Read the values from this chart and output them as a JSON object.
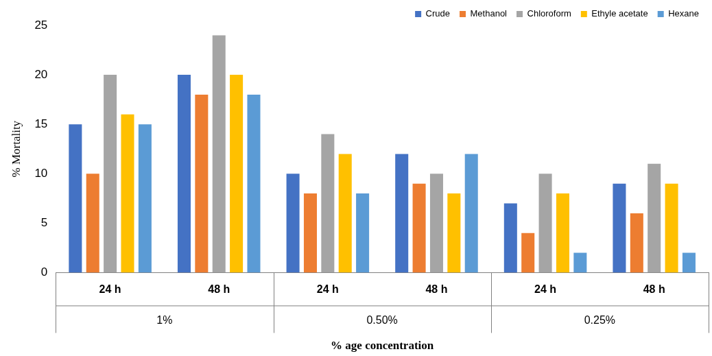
{
  "chart_data": {
    "type": "bar",
    "xlabel": "% age concentration",
    "ylabel": "% Mortality",
    "categories": [
      "24 h",
      "48 h",
      "24 h",
      "48 h",
      "24 h",
      "48 h"
    ],
    "annotations": [
      "1%",
      "0.50%",
      "0.25%"
    ],
    "series": [
      {
        "name": "Crude",
        "color": "#4472c4",
        "values": [
          15,
          20,
          10,
          12,
          7,
          9
        ]
      },
      {
        "name": "Methanol",
        "color": "#ed7d31",
        "values": [
          10,
          18,
          8,
          9,
          4,
          6
        ]
      },
      {
        "name": "Chloroform",
        "color": "#a5a5a5",
        "values": [
          20,
          24,
          14,
          10,
          10,
          11
        ]
      },
      {
        "name": "Ethyle acetate",
        "color": "#ffc000",
        "values": [
          16,
          20,
          12,
          8,
          8,
          9
        ]
      },
      {
        "name": "Hexane",
        "color": "#5b9bd5",
        "values": [
          15,
          18,
          8,
          12,
          2,
          2
        ]
      }
    ],
    "ylim": [
      0,
      25
    ],
    "yticks": [
      0,
      5,
      10,
      15,
      20,
      25
    ],
    "grid": false,
    "legend": "top right"
  }
}
